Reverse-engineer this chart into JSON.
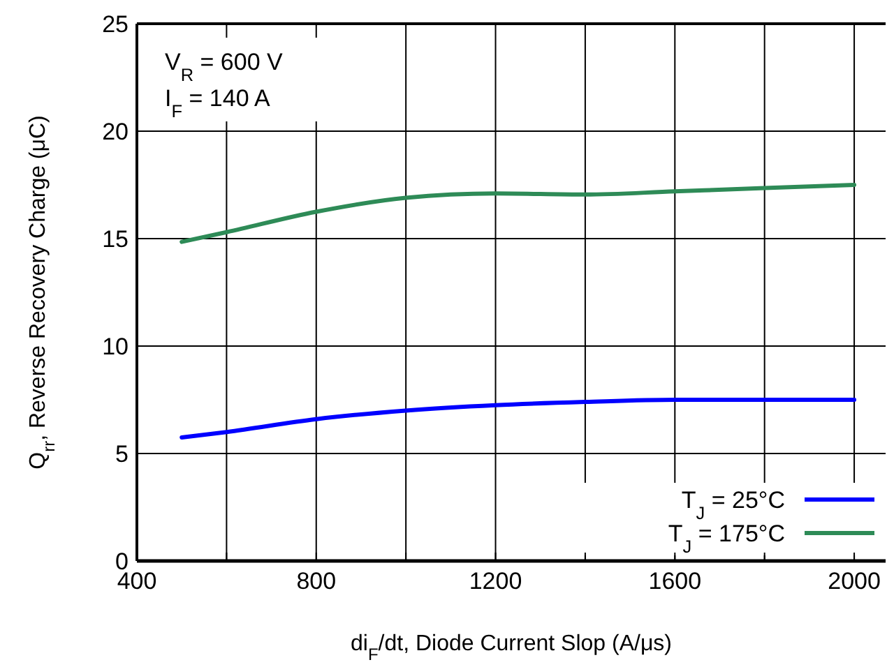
{
  "chart_data": {
    "type": "line",
    "xlabel": "di$_{F}$/dt, Diode Current Slop (A/μs)",
    "ylabel": "Q$_{rr}$, Reverse Recovery Charge (μC)",
    "annotations": [
      "V$_{R}$ = 600 V",
      "I$_{F}$ = 140 A"
    ],
    "x": [
      500,
      600,
      800,
      1000,
      1200,
      1400,
      1600,
      1800,
      2000
    ],
    "series": [
      {
        "name": "T$_{J}$ = 25°C",
        "color": "#0000ff",
        "values": [
          5.75,
          6.0,
          6.6,
          7.0,
          7.25,
          7.4,
          7.5,
          7.5,
          7.5
        ]
      },
      {
        "name": "T$_{J}$ = 175°C",
        "color": "#2e8b57",
        "values": [
          14.85,
          15.3,
          16.25,
          16.9,
          17.1,
          17.05,
          17.2,
          17.35,
          17.5
        ]
      }
    ],
    "xlim": [
      400,
      2070
    ],
    "xticks": [
      400,
      {
        "value": 600,
        "label": null
      },
      800,
      {
        "value": 1000,
        "label": null
      },
      1200,
      {
        "value": 1400,
        "label": null
      },
      1600,
      {
        "value": 1800,
        "label": null
      },
      2000
    ],
    "ylim": [
      0,
      25
    ],
    "yticks": [
      0,
      5,
      10,
      15,
      20,
      25
    ],
    "grid": true,
    "legend": "bottom right",
    "marker": "none",
    "line_style": "solid"
  }
}
